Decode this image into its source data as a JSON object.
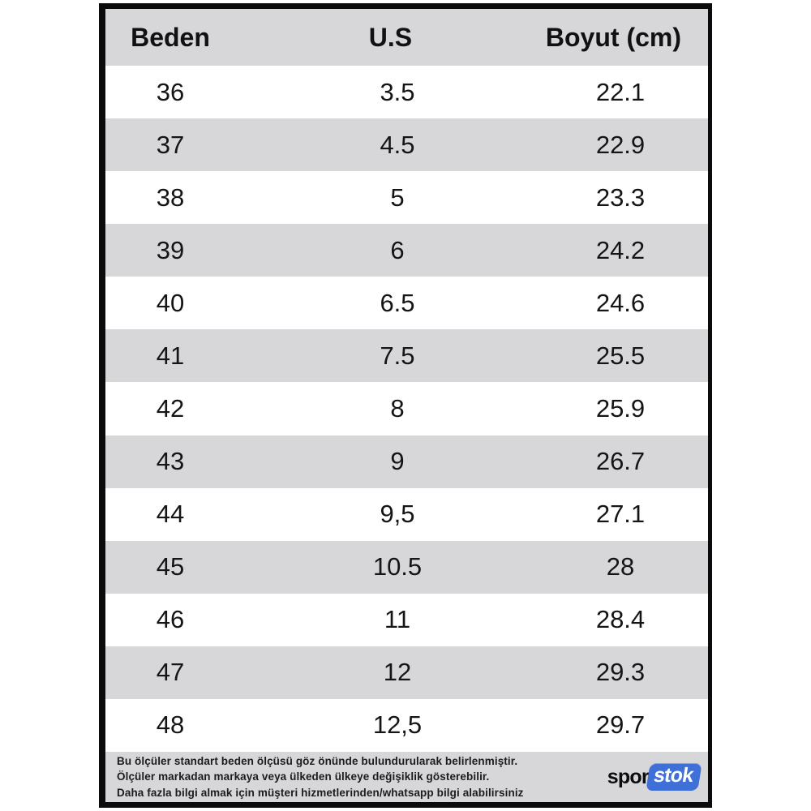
{
  "chart_data": {
    "type": "table",
    "columns": [
      "Beden",
      "U.S",
      "Boyut (cm)"
    ],
    "rows": [
      [
        "36",
        "3.5",
        "22.1"
      ],
      [
        "37",
        "4.5",
        "22.9"
      ],
      [
        "38",
        "5",
        "23.3"
      ],
      [
        "39",
        "6",
        "24.2"
      ],
      [
        "40",
        "6.5",
        "24.6"
      ],
      [
        "41",
        "7.5",
        "25.5"
      ],
      [
        "42",
        "8",
        "25.9"
      ],
      [
        "43",
        "9",
        "26.7"
      ],
      [
        "44",
        "9,5",
        "27.1"
      ],
      [
        "45",
        "10.5",
        "28"
      ],
      [
        "46",
        "11",
        "28.4"
      ],
      [
        "47",
        "12",
        "29.3"
      ],
      [
        "48",
        "12,5",
        "29.7"
      ]
    ],
    "layout": {
      "striped": true,
      "header_background": "gray",
      "first_data_row_background": "white"
    }
  },
  "footer": {
    "note_lines": [
      "Bu ölçüler standart beden ölçüsü göz önünde bulundurularak belirlenmiştir.",
      "Ölçüler markadan markaya veya ülkeden ülkeye değişiklik gösterebilir.",
      "Daha fazla bilgi almak için müşteri hizmetlerinden/whatsapp bilgi alabilirsiniz"
    ],
    "logo": {
      "text_black": "spor",
      "text_white": "stok"
    }
  },
  "colors": {
    "stripe_gray": "#d7d7d9",
    "border_black": "#0b0b0b",
    "logo_blue": "#3e70d7"
  }
}
